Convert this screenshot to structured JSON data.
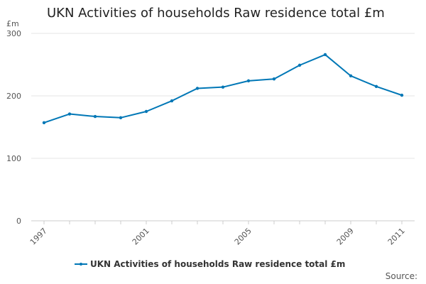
{
  "chart_data": {
    "type": "line",
    "title": "UKN Activities of households Raw residence total £m",
    "ylabel": "£m",
    "xlabel": "",
    "ylim": [
      0,
      300
    ],
    "yticks": [
      0,
      100,
      200,
      300
    ],
    "xticks": [
      1997,
      2001,
      2005,
      2009,
      2011
    ],
    "series": [
      {
        "name": "UKN Activities of households Raw residence total £m",
        "color": "#0077b6",
        "x": [
          1997,
          1998,
          1999,
          2000,
          2001,
          2002,
          2003,
          2004,
          2005,
          2006,
          2007,
          2008,
          2009,
          2010,
          2011
        ],
        "values": [
          157,
          171,
          167,
          165,
          175,
          192,
          212,
          214,
          224,
          227,
          249,
          266,
          232,
          215,
          201
        ]
      }
    ],
    "legend_position": "bottom",
    "grid": true
  },
  "footer": {
    "source_label": "Source:"
  }
}
